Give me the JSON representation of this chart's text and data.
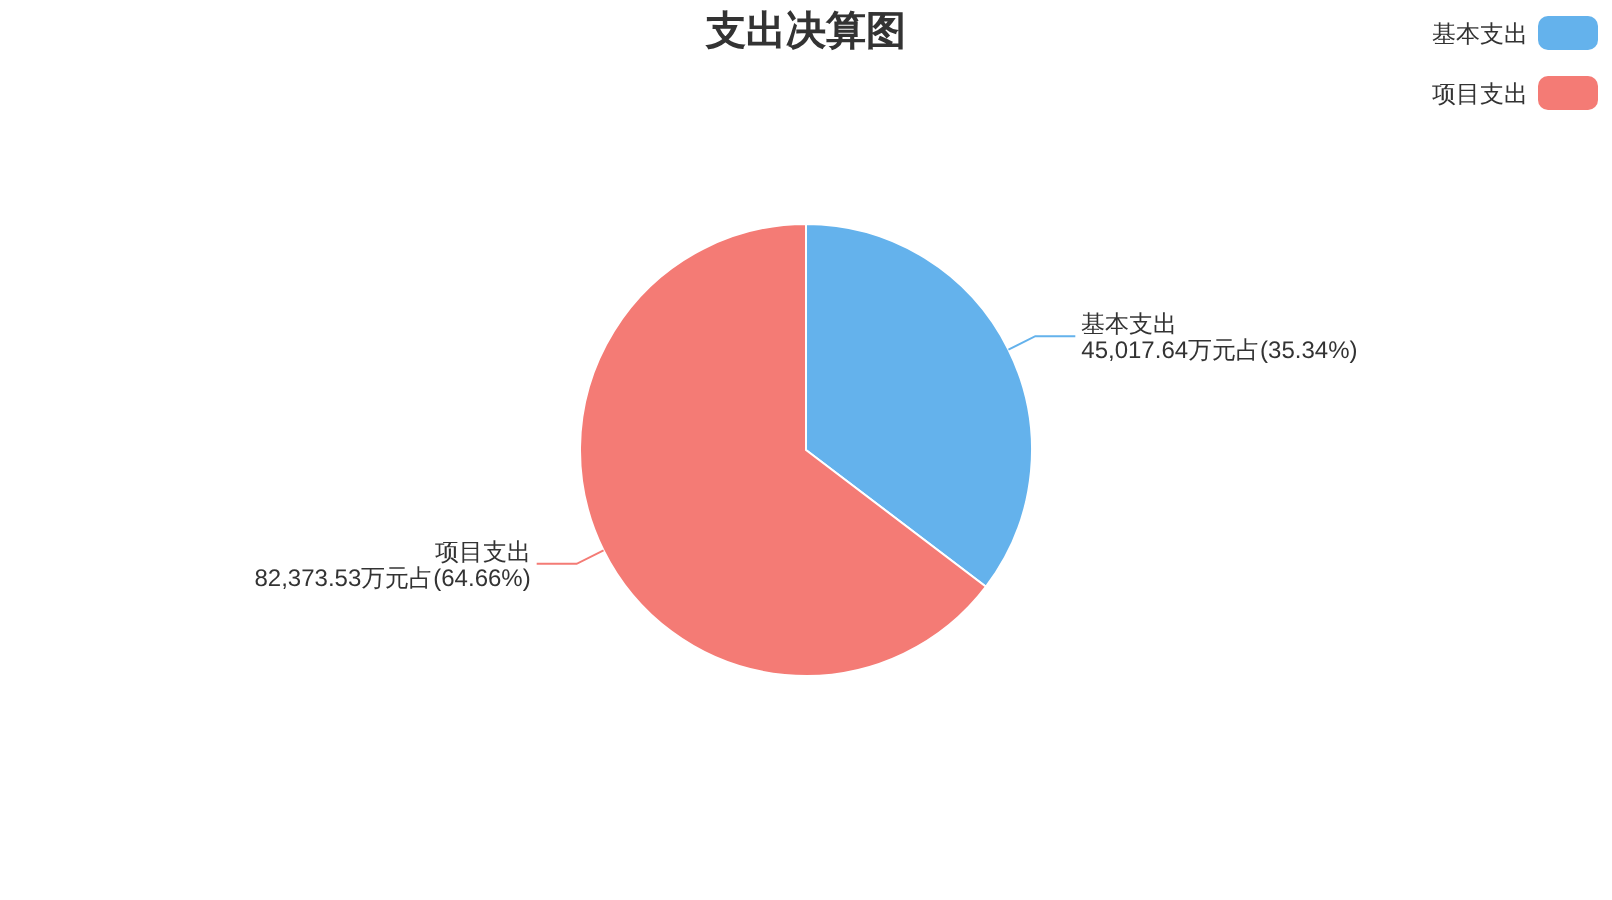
{
  "chart_data": {
    "type": "pie",
    "title": "支出决算图",
    "categories": [
      "基本支出",
      "项目支出"
    ],
    "values": [
      45017.64,
      82373.53
    ],
    "value_labels": [
      "45,017.64万元占(35.34%)",
      "82,373.53万元占(64.66%)"
    ],
    "colors": [
      "#64b2ec",
      "#f47b75"
    ],
    "legend": "top right"
  }
}
